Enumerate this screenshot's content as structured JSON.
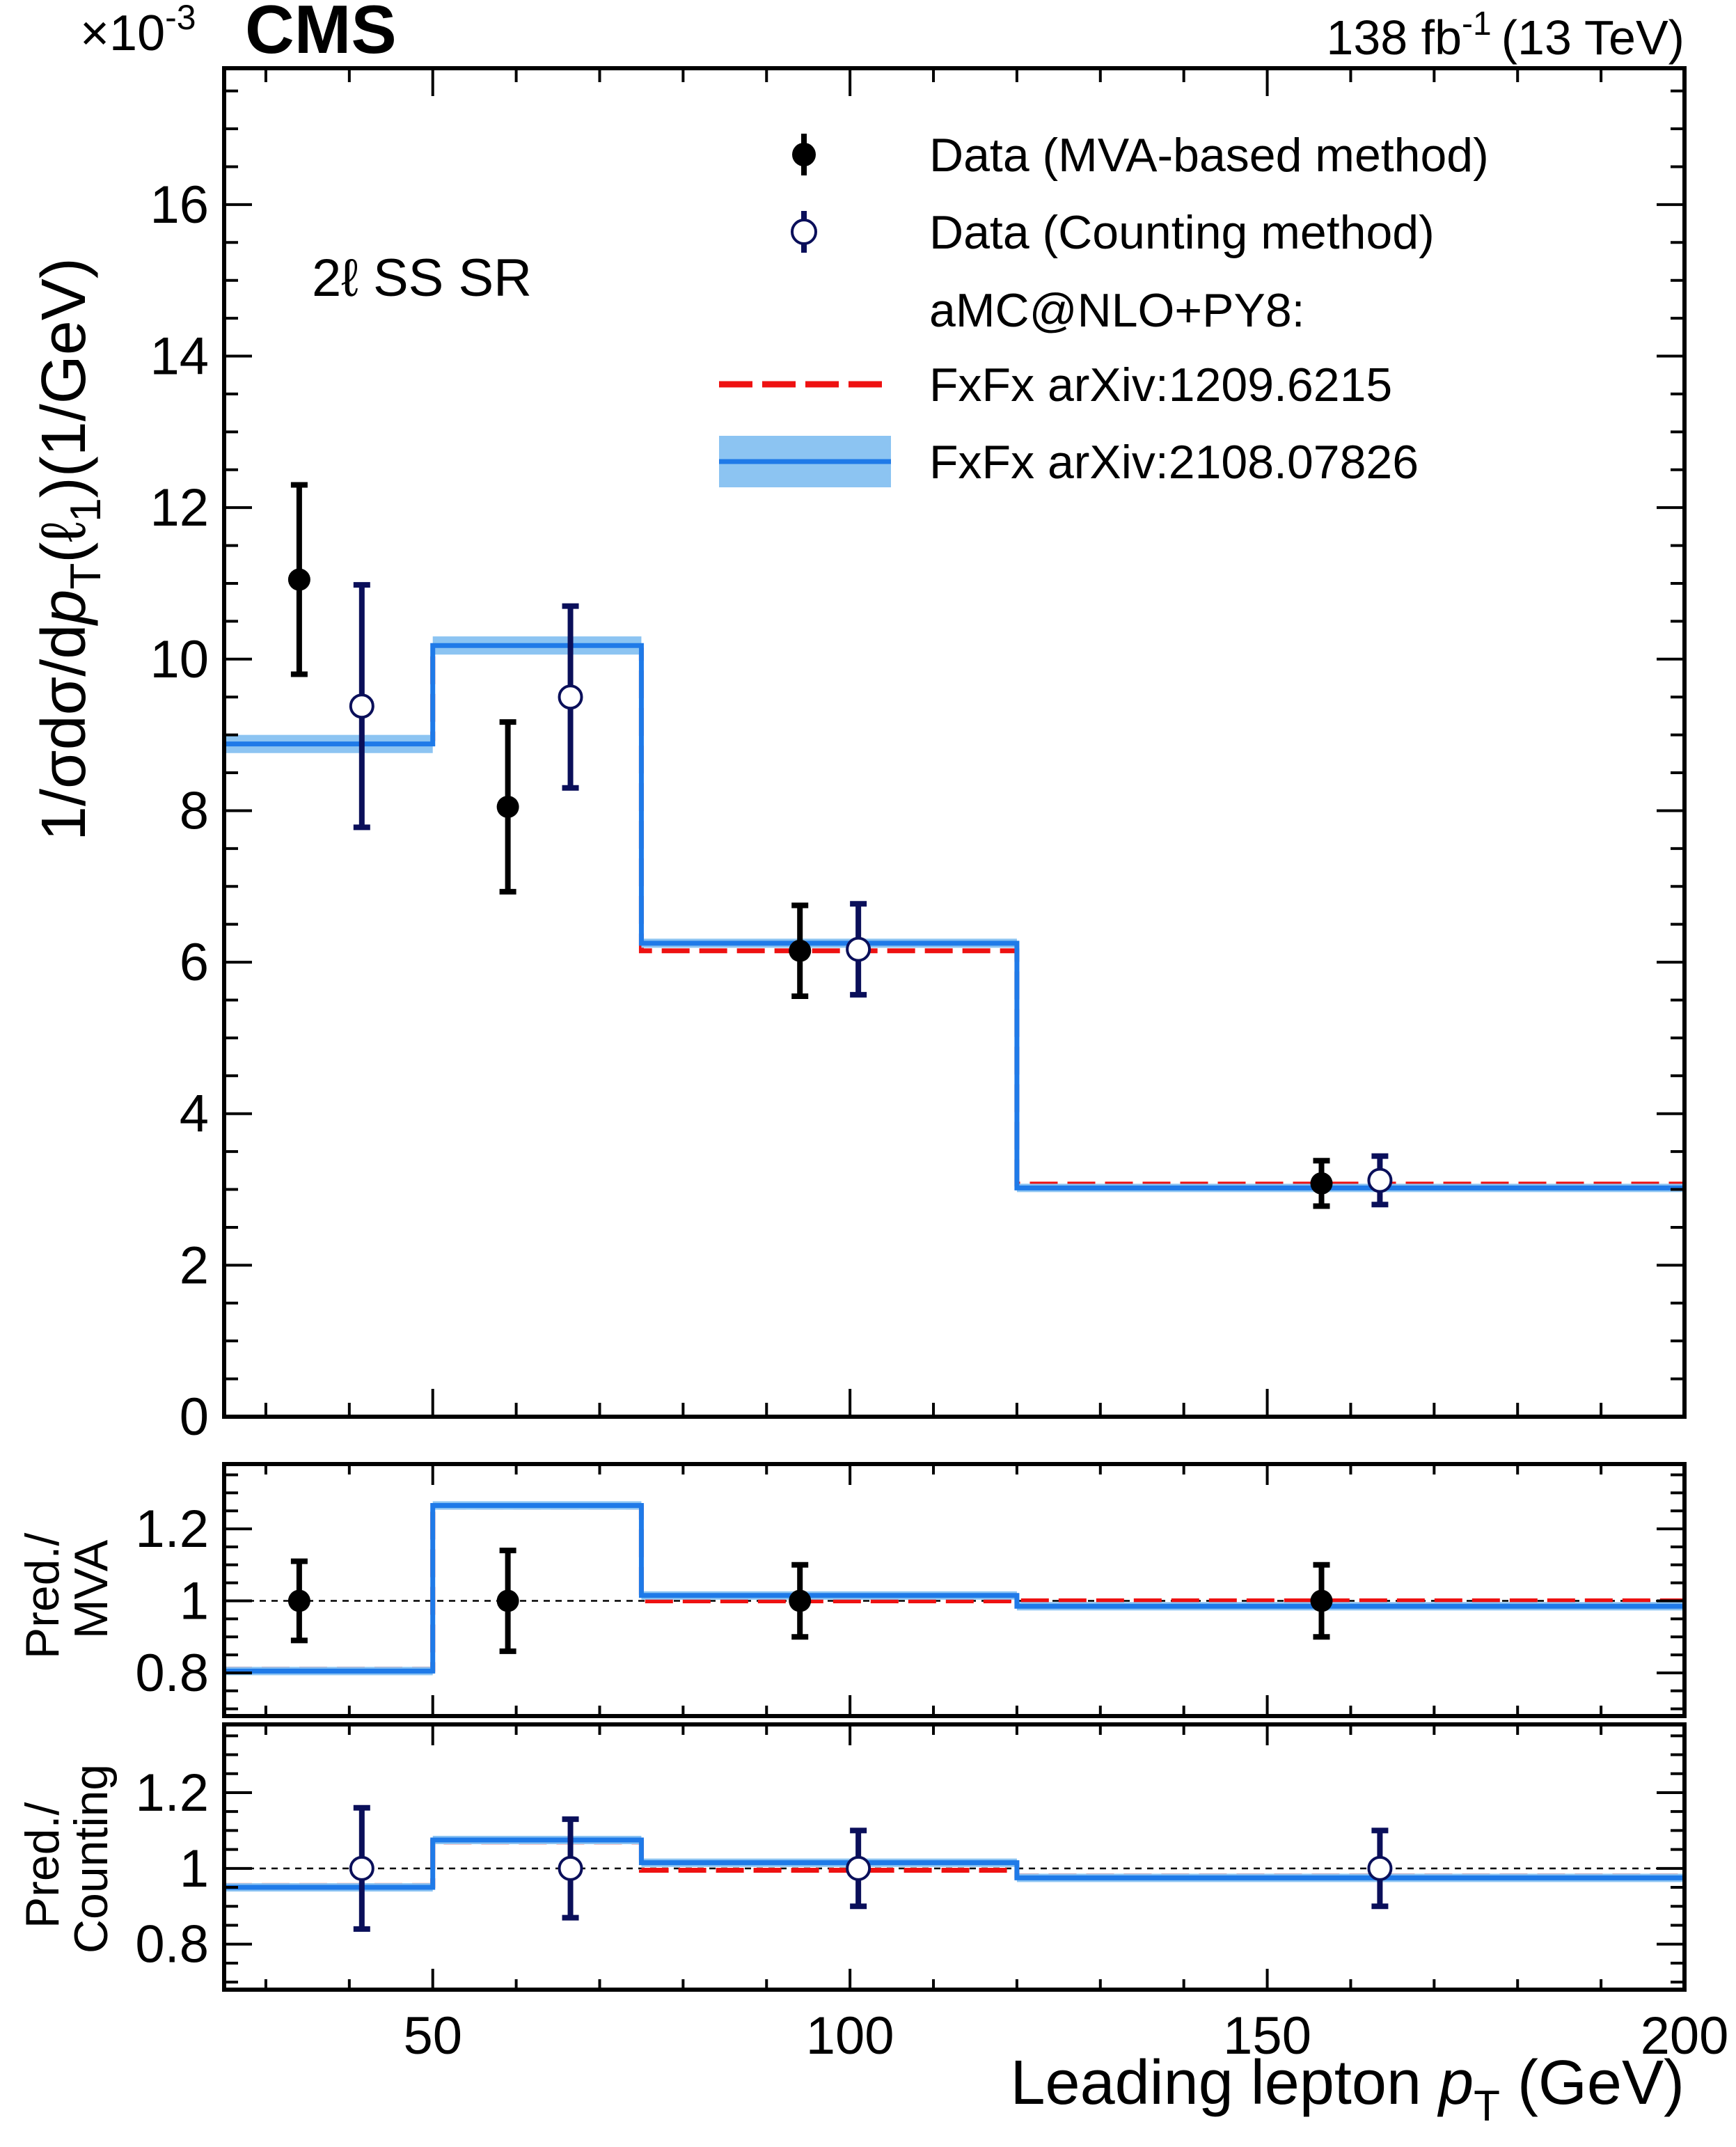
{
  "header": {
    "experiment": "CMS",
    "lumi": "138 fb",
    "lumi_sup": "-1",
    "energy": "(13 TeV)",
    "region": "2ℓ SS SR"
  },
  "colors": {
    "mva": "#000000",
    "counting": "#0a0f5a",
    "fxfx_old": "#ee1111",
    "fxfx_new_line": "#1f7ae8",
    "fxfx_new_band": "#8cc4f2"
  },
  "chart_data": [
    {
      "type": "step",
      "panel": "main",
      "ylabel_parts": [
        "1/σdσ/d",
        "p",
        "T",
        "(ℓ",
        "1",
        ")(1/GeV)"
      ],
      "multiplier": "×10",
      "multiplier_exp": "-3",
      "ylim": [
        0,
        17.8
      ],
      "yticks": [
        0,
        2,
        4,
        6,
        8,
        10,
        12,
        14,
        16
      ],
      "xlim": [
        25,
        200
      ],
      "bin_edges": [
        25,
        50,
        75,
        120,
        200
      ],
      "series": [
        {
          "name": "Data (MVA-based method)",
          "kind": "points",
          "x": [
            34,
            59,
            94,
            156.5
          ],
          "y": [
            11.05,
            8.05,
            6.15,
            3.08
          ],
          "err": [
            1.25,
            1.12,
            0.6,
            0.3
          ]
        },
        {
          "name": "Data (Counting method)",
          "kind": "points",
          "x": [
            41.5,
            66.5,
            101,
            163.5
          ],
          "y": [
            9.38,
            9.5,
            6.17,
            3.12
          ],
          "err": [
            1.6,
            1.2,
            0.6,
            0.32
          ]
        },
        {
          "name": "FxFx arXiv:1209.6215",
          "kind": "step-dash",
          "values": [
            8.95,
            10.12,
            6.15,
            3.07
          ]
        },
        {
          "name": "FxFx arXiv:2108.07826",
          "kind": "step-band",
          "values": [
            8.88,
            10.18,
            6.25,
            3.02
          ],
          "band": [
            0.12,
            0.12,
            0.06,
            0.03
          ]
        }
      ],
      "legend": {
        "items": [
          "Data (MVA-based method)",
          "Data (Counting method)",
          "aMC@NLO+PY8:",
          "FxFx arXiv:1209.6215",
          "FxFx arXiv:2108.07826"
        ],
        "position": "top-right"
      }
    },
    {
      "type": "step",
      "panel": "ratio_mva",
      "ylabel": [
        "Pred./",
        "MVA"
      ],
      "ylim": [
        0.68,
        1.38
      ],
      "yticks": [
        0.8,
        1,
        1.2
      ],
      "ytick_labels": [
        "0.8",
        "1",
        "1.2"
      ],
      "reference": 1,
      "series": [
        {
          "name": "Data (MVA-based method)",
          "kind": "points",
          "x": [
            34,
            59,
            94,
            156.5
          ],
          "y": [
            1,
            1,
            1,
            1
          ],
          "err": [
            0.11,
            0.14,
            0.1,
            0.1
          ]
        },
        {
          "name": "FxFx arXiv:1209.6215",
          "kind": "step-dash",
          "values": [
            0.81,
            1.26,
            1.0,
            1.0
          ]
        },
        {
          "name": "FxFx arXiv:2108.07826",
          "kind": "step-band",
          "values": [
            0.805,
            1.265,
            1.015,
            0.985
          ],
          "band": [
            0.006,
            0.006,
            0.006,
            0.006
          ]
        }
      ]
    },
    {
      "type": "step",
      "panel": "ratio_counting",
      "ylabel": [
        "Pred./",
        "Counting"
      ],
      "ylim": [
        0.68,
        1.38
      ],
      "yticks": [
        0.8,
        1,
        1.2
      ],
      "ytick_labels": [
        "0.8",
        "1",
        "1.2"
      ],
      "reference": 1,
      "xlabel_parts": [
        "Leading lepton ",
        "p",
        "T",
        " (GeV)"
      ],
      "xticks": [
        50,
        100,
        150,
        200
      ],
      "xtick_labels": [
        "50",
        "100",
        "150",
        "200"
      ],
      "series": [
        {
          "name": "Data (Counting method)",
          "kind": "points",
          "x": [
            41.5,
            66.5,
            101,
            163.5
          ],
          "y": [
            1,
            1,
            1,
            1
          ],
          "err": [
            0.16,
            0.13,
            0.1,
            0.1
          ]
        },
        {
          "name": "FxFx arXiv:1209.6215",
          "kind": "step-dash",
          "values": [
            0.955,
            1.07,
            0.995,
            0.98
          ]
        },
        {
          "name": "FxFx arXiv:2108.07826",
          "kind": "step-band",
          "values": [
            0.95,
            1.075,
            1.015,
            0.975
          ],
          "band": [
            0.01,
            0.01,
            0.01,
            0.01
          ]
        }
      ]
    }
  ]
}
